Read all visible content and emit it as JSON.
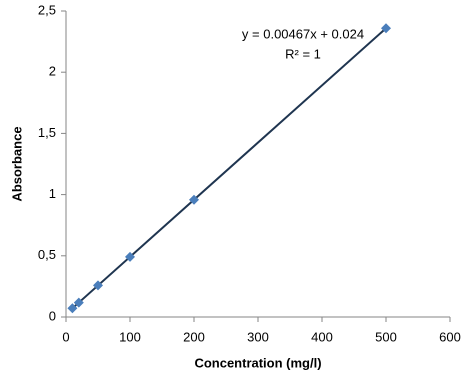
{
  "chart_data": {
    "type": "scatter",
    "x_label": "Concentration (mg/l)",
    "y_label": "Absorbance",
    "annotations": [
      "y = 0.00467x + 0.024",
      "R² = 1"
    ],
    "series": [
      {
        "name": "Absorbance",
        "color": "#4a7ebb",
        "x": [
          10,
          20,
          50,
          100,
          200,
          500
        ],
        "values": [
          0.071,
          0.117,
          0.258,
          0.491,
          0.958,
          2.359
        ]
      }
    ],
    "trendline_color": "#1f3550",
    "xlim": [
      0,
      600
    ],
    "xticks": [
      0,
      100,
      200,
      300,
      400,
      500,
      600
    ],
    "ylim": [
      0,
      2.5
    ],
    "yticks": [
      0,
      {
        "value": 0.5,
        "label": "0,5"
      },
      1,
      {
        "value": 1.5,
        "label": "1,5"
      },
      2,
      {
        "value": 2.5,
        "label": "2,5"
      }
    ]
  }
}
